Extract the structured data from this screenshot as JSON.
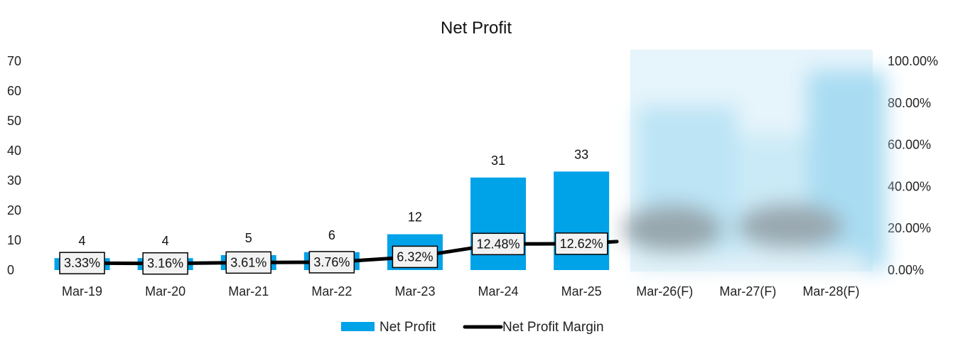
{
  "chart_data": {
    "type": "bar",
    "title": "Net Profit",
    "categories": [
      "Mar-19",
      "Mar-20",
      "Mar-21",
      "Mar-22",
      "Mar-23",
      "Mar-24",
      "Mar-25",
      "Mar-26(F)",
      "Mar-27(F)",
      "Mar-28(F)"
    ],
    "series": [
      {
        "name": "Net Profit",
        "kind": "bar",
        "axis": "left",
        "color": "#00A2E8",
        "values": [
          4,
          4,
          5,
          6,
          12,
          31,
          33,
          null,
          null,
          null
        ],
        "labels": [
          "4",
          "4",
          "5",
          "6",
          "12",
          "31",
          "33",
          "",
          "",
          ""
        ]
      },
      {
        "name": "Net Profit Margin",
        "kind": "line",
        "axis": "right",
        "color": "#000000",
        "values": [
          3.33,
          3.16,
          3.61,
          3.76,
          6.32,
          12.48,
          12.62,
          null,
          null,
          null
        ],
        "labels": [
          "3.33%",
          "3.16%",
          "3.61%",
          "3.76%",
          "6.32%",
          "12.48%",
          "12.62%",
          "",
          "",
          ""
        ]
      }
    ],
    "y_left": {
      "min": 0,
      "max": 70,
      "ticks": [
        "0",
        "10",
        "20",
        "30",
        "40",
        "50",
        "60",
        "70"
      ]
    },
    "y_right": {
      "min": 0,
      "max": 100,
      "ticks": [
        "0.00%",
        "20.00%",
        "40.00%",
        "60.00%",
        "80.00%",
        "100.00%"
      ]
    },
    "legend": {
      "position": "bottom",
      "items": [
        {
          "label": "Net Profit",
          "kind": "bar",
          "color": "#00A2E8"
        },
        {
          "label": "Net Profit Margin",
          "kind": "line",
          "color": "#000000"
        }
      ]
    },
    "obscured": {
      "from_category": "Mar-26(F)",
      "to_category": "Mar-28(F)",
      "note": "values pixelated/blurred"
    },
    "grid": false
  }
}
